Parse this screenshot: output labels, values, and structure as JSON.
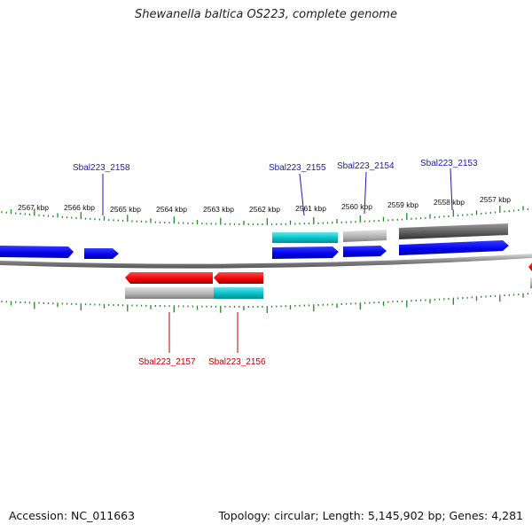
{
  "title": "Shewanella baltica OS223, complete genome",
  "footer": {
    "accession_label": "Accession: NC_011663",
    "topology_label": "Topology: circular; Length: 5,145,902 bp; Genes: 4,281"
  },
  "scale": {
    "ticks": [
      {
        "label": "2567 kbp",
        "kbp": 2567
      },
      {
        "label": "2566 kbp",
        "kbp": 2566
      },
      {
        "label": "2565 kbp",
        "kbp": 2565
      },
      {
        "label": "2564 kbp",
        "kbp": 2564
      },
      {
        "label": "2563 kbp",
        "kbp": 2563
      },
      {
        "label": "2562 kbp",
        "kbp": 2562
      },
      {
        "label": "2561 kbp",
        "kbp": 2561
      },
      {
        "label": "2560 kbp",
        "kbp": 2560
      },
      {
        "label": "2559 kbp",
        "kbp": 2559
      },
      {
        "label": "2558 kbp",
        "kbp": 2558
      },
      {
        "label": "2557 kbp",
        "kbp": 2557
      }
    ]
  },
  "gene_labels": {
    "forward": [
      "Sbal223_2158",
      "Sbal223_2155",
      "Sbal223_2154",
      "Sbal223_2153"
    ],
    "reverse": [
      "Sbal223_2157",
      "Sbal223_2156"
    ]
  },
  "colors": {
    "forward_gene": "#0000ee",
    "reverse_gene": "#ee0000",
    "cyan_feature": "#00bcc4",
    "gray_feature": "#aaaaaa",
    "dark_feature": "#555555",
    "tick_green": "#228b22",
    "backbone": "#777777",
    "forward_label": "#1a1aa6",
    "reverse_label": "#c00000"
  }
}
